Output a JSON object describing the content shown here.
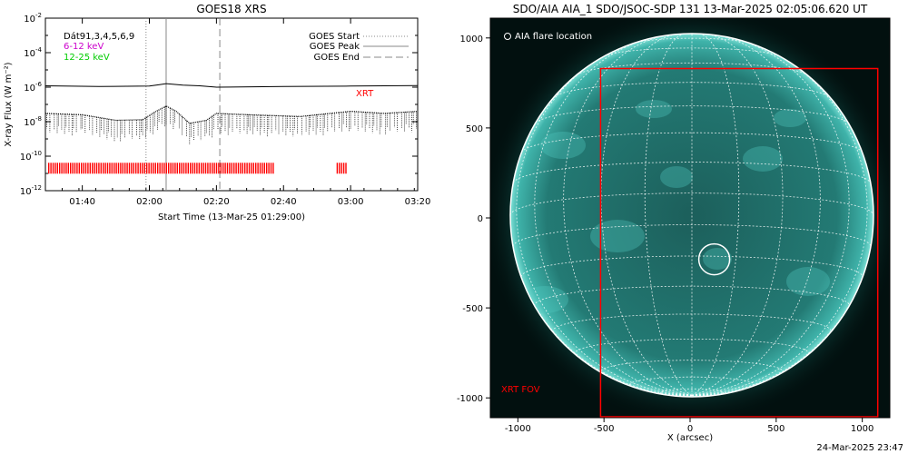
{
  "colors": {
    "background": "#ffffff",
    "xrt": "#ff0000",
    "band_6_12": "#cc00cc",
    "band_12_25": "#00cc00",
    "sun_disk": "#1a6b66",
    "sun_corona": "#3aa8a0",
    "sun_background": "#02100f",
    "grid_lines": "#ffffff"
  },
  "chart_data": [
    {
      "type": "line",
      "title": "GOES18 XRS",
      "xlabel": "Start Time (13-Mar-25 01:29:00)",
      "ylabel": "X-ray Flux (W m⁻²)",
      "xlim": [
        "01:29",
        "03:20"
      ],
      "ylim": [
        1e-12,
        0.01
      ],
      "yscale": "log",
      "x_ticks": [
        "01:40",
        "02:00",
        "02:20",
        "02:40",
        "03:00",
        "03:20"
      ],
      "y_ticks": [
        {
          "base": "10",
          "exp": "-2"
        },
        {
          "base": "10",
          "exp": "-4"
        },
        {
          "base": "10",
          "exp": "-6"
        },
        {
          "base": "10",
          "exp": "-8"
        },
        {
          "base": "10",
          "exp": "-10"
        },
        {
          "base": "10",
          "exp": "-12"
        }
      ],
      "legend_left": [
        {
          "label": "Dát91,3,4,5,6,9",
          "color": "#000000"
        },
        {
          "label": "6-12 keV",
          "color": "#cc00cc"
        },
        {
          "label": "12-25 keV",
          "color": "#00cc00"
        }
      ],
      "legend_right": [
        {
          "label": "GOES Start",
          "style": "dotted"
        },
        {
          "label": "GOES Peak",
          "style": "solid"
        },
        {
          "label": "GOES End",
          "style": "dashed"
        }
      ],
      "event_lines": {
        "start": "01:59",
        "peak": "02:05",
        "end": "02:21"
      },
      "xrt_label": "XRT",
      "series": [
        {
          "style": "solid",
          "x": [
            "01:29",
            "01:45",
            "02:00",
            "02:03",
            "02:05",
            "02:10",
            "02:15",
            "02:20",
            "02:40",
            "03:00",
            "03:20"
          ],
          "y": [
            1.2e-06,
            1.1e-06,
            1.15e-06,
            1.4e-06,
            1.6e-06,
            1.3e-06,
            1.2e-06,
            1e-06,
            1.1e-06,
            1.15e-06,
            1.25e-06
          ]
        },
        {
          "style": "dotted",
          "x": [
            "01:29",
            "01:40",
            "01:50",
            "01:58",
            "02:02",
            "02:05",
            "02:08",
            "02:12",
            "02:17",
            "02:20",
            "02:30",
            "02:45",
            "03:00",
            "03:10",
            "03:20"
          ],
          "y": [
            3e-08,
            2.5e-08,
            1.2e-08,
            1.3e-08,
            4e-08,
            8e-08,
            4e-08,
            8e-09,
            1.2e-08,
            3e-08,
            2.5e-08,
            2e-08,
            4e-08,
            3e-08,
            4e-08
          ]
        }
      ],
      "xrt_coverage": [
        [
          "01:30",
          "02:37"
        ],
        [
          "02:56",
          "02:59"
        ]
      ]
    },
    {
      "type": "image",
      "title": "SDO/AIA AIA_1 SDO/JSOC-SDP 131 13-Mar-2025 02:05:06.620 UT",
      "xlabel": "X (arcsec)",
      "xlim": [
        -1160,
        1160
      ],
      "ylim": [
        -1110,
        1110
      ],
      "x_ticks": [
        "-1000",
        "-500",
        "0",
        "500",
        "1000"
      ],
      "y_ticks": [
        "1000",
        "500",
        "0",
        "-500",
        "-1000"
      ],
      "legend": "AIA flare location",
      "flare_location": [
        140,
        -230
      ],
      "xrt_fov_label": "XRT FOV",
      "xrt_fov": {
        "x": [
          -520,
          1090
        ],
        "y": [
          -1110,
          830
        ]
      }
    }
  ],
  "timestamp": "24-Mar-2025 23:47"
}
